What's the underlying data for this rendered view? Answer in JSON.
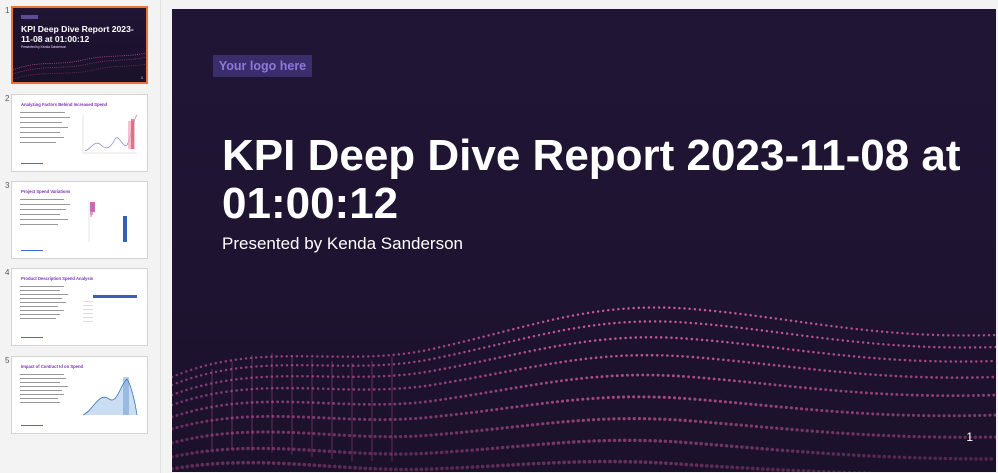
{
  "thumbnails": [
    {
      "number": "1",
      "title": "KPI Deep Dive Report 2023-11-08 at 01:00:12",
      "subtitle": "Presented by Kenda Sanderson",
      "logo_text": "Your logo here",
      "page": "1"
    },
    {
      "number": "2",
      "title": "Analyzing Factors Behind Increased Spend",
      "bullets": [
        "",
        "",
        "",
        "",
        ""
      ]
    },
    {
      "number": "3",
      "title": "Project Spend Variations",
      "bullets": [
        "",
        "",
        "",
        ""
      ]
    },
    {
      "number": "4",
      "title": "Product Description Spend Analysis",
      "bullets": [
        "",
        "",
        "",
        "",
        ""
      ]
    },
    {
      "number": "5",
      "title": "Impact of Contract Id on Spend",
      "bullets": [
        "",
        "",
        "",
        "",
        ""
      ]
    }
  ],
  "slide": {
    "logo_text": "Your logo here",
    "title": "KPI Deep Dive Report 2023-11-08 at 01:00:12",
    "subtitle": "Presented by Kenda Sanderson",
    "page_number": "1"
  },
  "colors": {
    "slide_bg": "#201533",
    "accent_pink": "#d9559a",
    "thumb_title_purple": "#7b2fb6",
    "active_border": "#e8743b"
  }
}
